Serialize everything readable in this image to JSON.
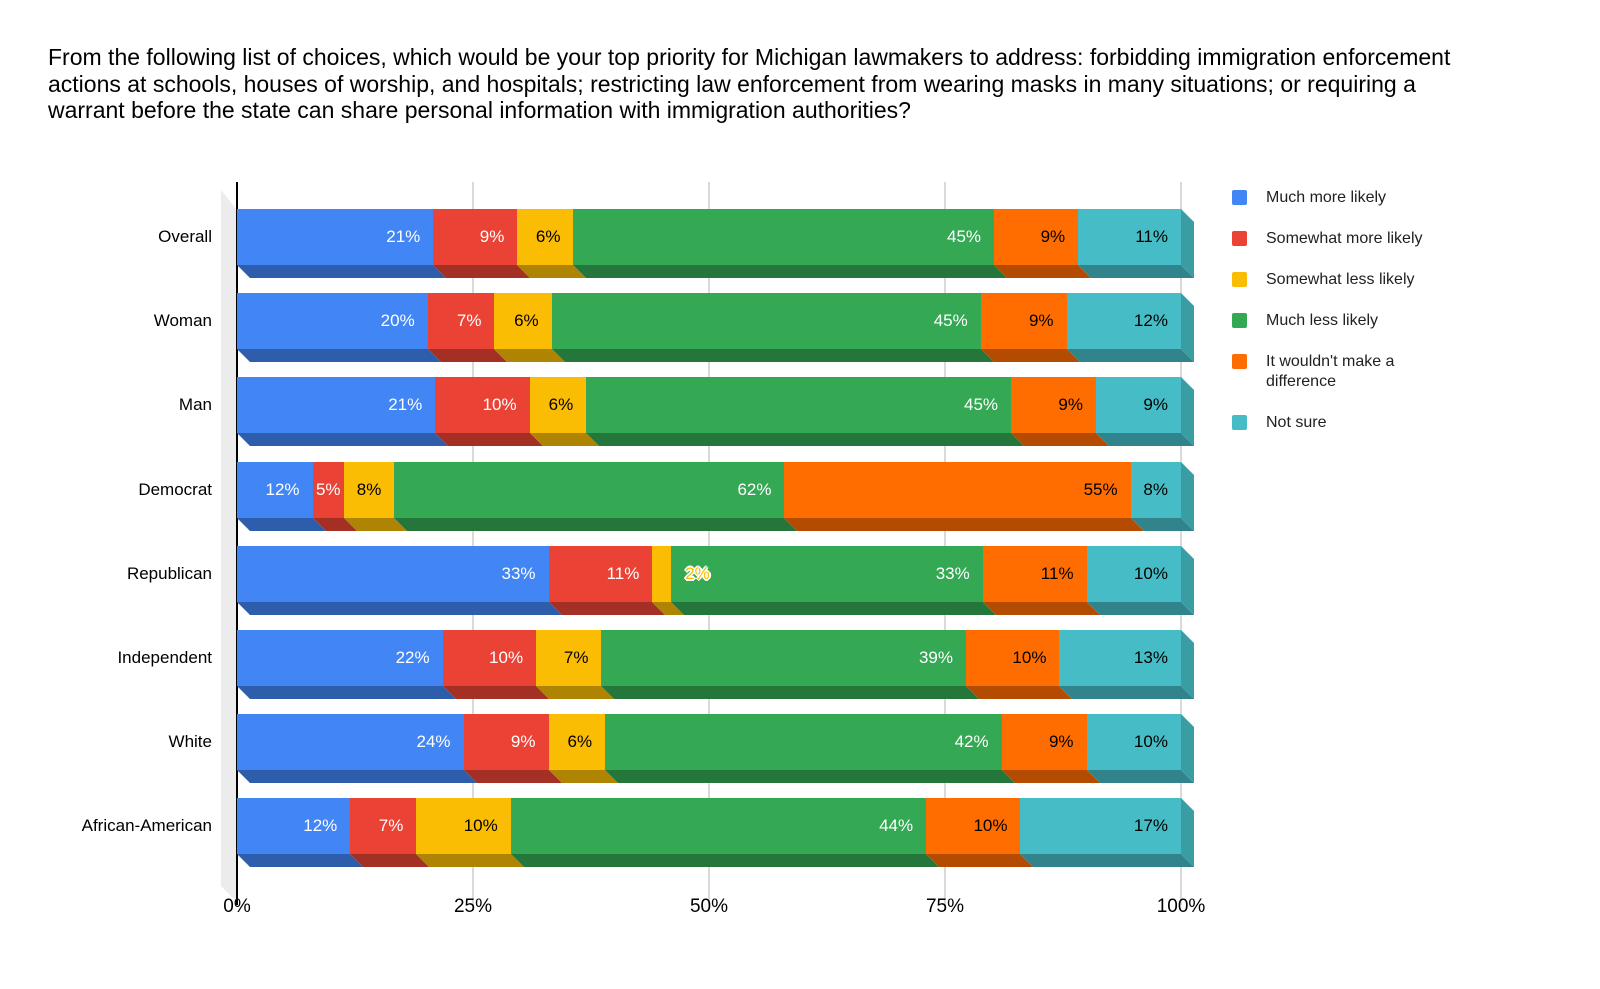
{
  "title": "From the following list of choices, which would be your top priority for Michigan lawmakers to address: forbidding immigration enforcement actions at schools, houses of worship, and hospitals; restricting law enforcement from wearing masks in many situations; or requiring a warrant before the state can share personal information with immigration authorities?",
  "legend": {
    "position": "right",
    "items": [
      {
        "label": "Much more likely",
        "color": "#4285F4"
      },
      {
        "label": "Somewhat more likely",
        "color": "#EA4335"
      },
      {
        "label": "Somewhat less likely",
        "color": "#FBBC04"
      },
      {
        "label": "Much less likely",
        "color": "#34A853"
      },
      {
        "label": "It wouldn't make a difference",
        "color": "#FF6D01"
      },
      {
        "label": "Not sure",
        "color": "#46BDC6"
      }
    ]
  },
  "chart_data": {
    "type": "bar",
    "subtype": "stacked-horizontal-3d",
    "categories": [
      "Overall",
      "Woman",
      "Man",
      "Democrat",
      "Republican",
      "Independent",
      "White",
      "African-American"
    ],
    "series": [
      {
        "name": "Much more likely",
        "color": "#4285F4",
        "values": [
          21,
          20,
          21,
          12,
          33,
          22,
          24,
          12
        ]
      },
      {
        "name": "Somewhat more likely",
        "color": "#EA4335",
        "values": [
          9,
          7,
          10,
          5,
          11,
          10,
          9,
          7
        ]
      },
      {
        "name": "Somewhat less likely",
        "color": "#FBBC04",
        "values": [
          6,
          6,
          6,
          8,
          2,
          7,
          6,
          10
        ]
      },
      {
        "name": "Much less likely",
        "color": "#34A853",
        "values": [
          45,
          45,
          45,
          62,
          33,
          39,
          42,
          44
        ]
      },
      {
        "name": "It wouldn't make a difference",
        "color": "#FF6D01",
        "values": [
          9,
          9,
          9,
          55,
          11,
          10,
          9,
          10
        ]
      },
      {
        "name": "Not sure",
        "color": "#46BDC6",
        "values": [
          11,
          12,
          9,
          8,
          10,
          13,
          10,
          17
        ]
      }
    ],
    "label_format": "percent",
    "label_text_colors": [
      "#ffffff",
      "#ffffff",
      "#000000",
      "#ffffff",
      "#000000",
      "#000000"
    ],
    "x_ticks": [
      {
        "label": "0%",
        "value": 0
      },
      {
        "label": "25%",
        "value": 25
      },
      {
        "label": "50%",
        "value": 50
      },
      {
        "label": "75%",
        "value": 75
      },
      {
        "label": "100%",
        "value": 100
      }
    ],
    "axis_range": [
      0,
      100
    ],
    "grid": true,
    "widths_normalized_to_row_total": true
  }
}
